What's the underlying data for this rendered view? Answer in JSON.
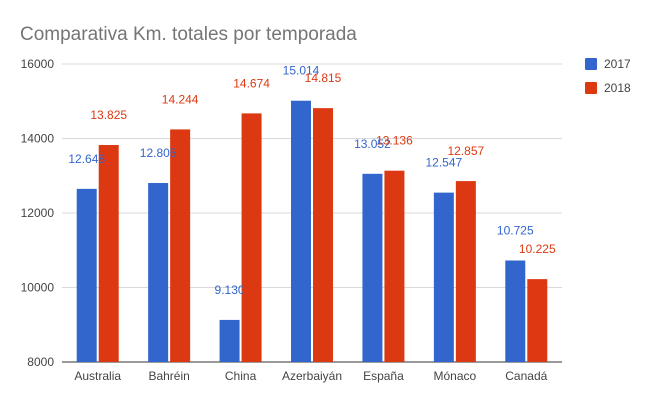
{
  "chart_data": {
    "type": "bar",
    "title": "Comparativa Km. totales por temporada",
    "xlabel": "",
    "ylabel": "",
    "categories": [
      "Australia",
      "Bahréin",
      "China",
      "Azerbaiyán",
      "España",
      "Mónaco",
      "Canadá"
    ],
    "series": [
      {
        "name": "2017",
        "color": "#3366cc",
        "values": [
          12648,
          12805,
          9130,
          15014,
          13052,
          12547,
          10725
        ],
        "labels": [
          "12.648",
          "12.805",
          "9.130",
          "15.014",
          "13.052",
          "12.547",
          "10.725"
        ]
      },
      {
        "name": "2018",
        "color": "#dc3912",
        "values": [
          13825,
          14244,
          14674,
          14815,
          13136,
          12857,
          10225
        ],
        "labels": [
          "13.825",
          "14.244",
          "14.674",
          "14.815",
          "13.136",
          "12.857",
          "10.225"
        ]
      }
    ],
    "ylim": [
      8000,
      16000
    ],
    "yticks": [
      8000,
      10000,
      12000,
      14000,
      16000
    ],
    "grid": true,
    "legend_position": "right"
  }
}
